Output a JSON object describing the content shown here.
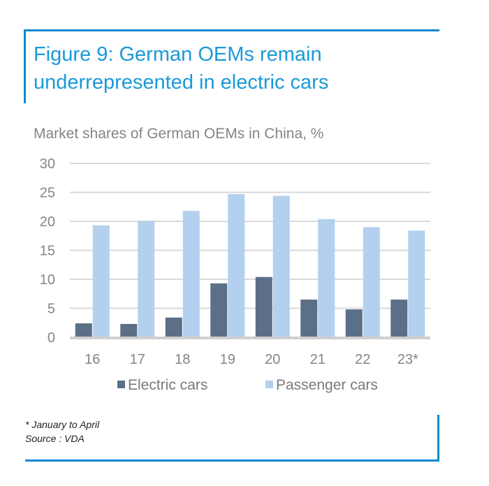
{
  "title": "Figure 9: German OEMs remain underrepresented in electric cars",
  "subtitle": "Market shares of German OEMs in China, %",
  "footnote": {
    "note": "* January to April",
    "source": "Source : VDA"
  },
  "colors": {
    "frame": "#0a8ad2",
    "title": "#1a9ad6",
    "electric": "#5b6f87",
    "passenger": "#b3d0ee",
    "grid": "#d9d9d9",
    "axis": "#cfcfcf",
    "text": "#858585"
  },
  "chart_data": {
    "type": "bar",
    "title": "Market shares of German OEMs in China, %",
    "xlabel": "",
    "ylabel": "%",
    "categories": [
      "16",
      "17",
      "18",
      "19",
      "20",
      "21",
      "22",
      "23*"
    ],
    "series": [
      {
        "name": "Electric cars",
        "values": [
          2.4,
          2.3,
          3.4,
          9.3,
          10.4,
          6.5,
          4.8,
          6.5
        ]
      },
      {
        "name": "Passenger cars",
        "values": [
          19.3,
          20.1,
          21.8,
          24.7,
          24.4,
          20.4,
          19.0,
          18.4
        ]
      }
    ],
    "ylim": [
      0,
      30
    ],
    "yticks": [
      0,
      5,
      10,
      15,
      20,
      25,
      30
    ],
    "grid": true,
    "legend": "bottom"
  }
}
